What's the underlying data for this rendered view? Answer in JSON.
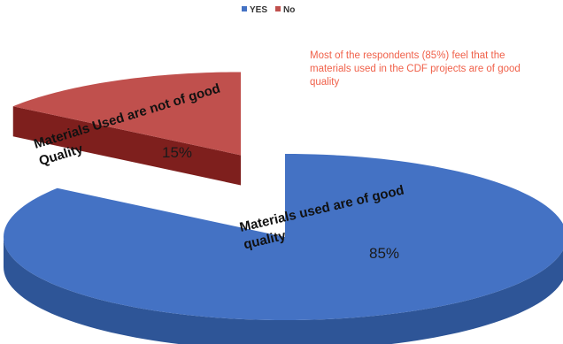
{
  "chart_data": {
    "type": "pie",
    "style": "3d-exploded",
    "title": "",
    "legend": {
      "placement": "top-center",
      "entries": [
        {
          "label": "YES",
          "color": "#4472C4"
        },
        {
          "label": "No",
          "color": "#C0504D"
        }
      ]
    },
    "slices": [
      {
        "name": "YES",
        "value": 85,
        "percent_label": "85%",
        "label": "Materials used are of good quality",
        "color": "#4472C4",
        "side_color": "#2E5597"
      },
      {
        "name": "No",
        "value": 15,
        "percent_label": "15%",
        "label": "Materials Used are not of good Quality",
        "color": "#C0504D",
        "side_color": "#7E1F1D"
      }
    ],
    "annotation": {
      "lines": [
        "Most of the respondents (85%) feel that the",
        "materials used in the CDF projects are of good",
        "quality"
      ],
      "color": "#F0614A"
    }
  }
}
